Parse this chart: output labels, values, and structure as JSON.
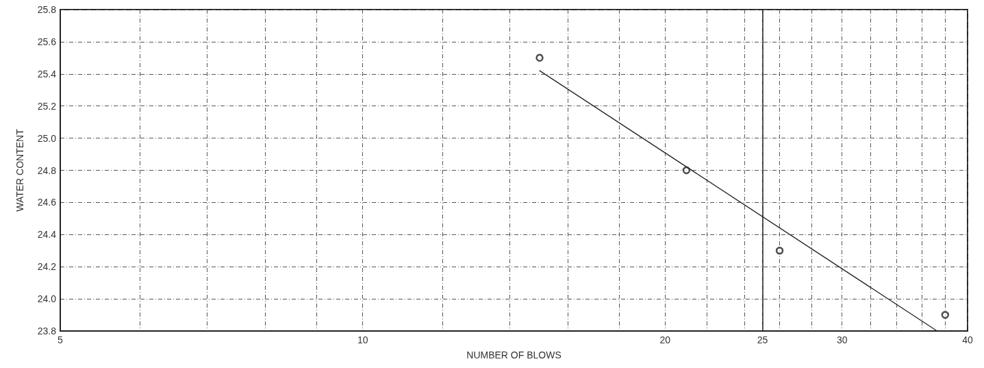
{
  "chart_data": {
    "type": "scatter",
    "xlabel": "NUMBER OF BLOWS",
    "ylabel": "WATER CONTENT",
    "log": "x",
    "xlim": [
      5,
      40
    ],
    "xticks": [
      5,
      {
        "value": 6,
        "label": null
      },
      {
        "value": 7,
        "label": null
      },
      {
        "value": 8,
        "label": null
      },
      {
        "value": 9,
        "label": null
      },
      10,
      {
        "value": 12,
        "label": null
      },
      {
        "value": 14,
        "label": null
      },
      {
        "value": 16,
        "label": null
      },
      {
        "value": 18,
        "label": null
      },
      20,
      {
        "value": 22,
        "label": null
      },
      {
        "value": 24,
        "label": null
      },
      25,
      {
        "value": 26,
        "label": null
      },
      {
        "value": 28,
        "label": null
      },
      30,
      {
        "value": 32,
        "label": null
      },
      {
        "value": 34,
        "label": null
      },
      {
        "value": 36,
        "label": null
      },
      {
        "value": 38,
        "label": null
      },
      40
    ],
    "ylim": [
      23.8,
      25.8
    ],
    "yticks": [
      {
        "value": 23.8,
        "label": "23.8"
      },
      {
        "value": 24.0,
        "label": "24.0"
      },
      {
        "value": 24.2,
        "label": "24.2"
      },
      {
        "value": 24.4,
        "label": "24.4"
      },
      {
        "value": 24.6,
        "label": "24.6"
      },
      {
        "value": 24.8,
        "label": "24.8"
      },
      {
        "value": 25.0,
        "label": "25.0"
      },
      {
        "value": 25.2,
        "label": "25.2"
      },
      {
        "value": 25.4,
        "label": "25.4"
      },
      {
        "value": 25.6,
        "label": "25.6"
      },
      {
        "value": 25.8,
        "label": "25.8"
      }
    ],
    "grid": true,
    "marker": "circle",
    "series": [
      {
        "color": "#222222",
        "x": [
          15,
          21,
          26,
          38
        ],
        "values": [
          25.5,
          24.8,
          24.3,
          23.9
        ]
      },
      {
        "type": "line",
        "color": "#222222",
        "marker": "none",
        "x": [
          15,
          37.3
        ],
        "values": [
          25.42,
          23.8
        ]
      }
    ],
    "ref_lines": [
      {
        "axis": "x",
        "value": 25,
        "color": "#222222",
        "line_style": "solid"
      }
    ]
  }
}
